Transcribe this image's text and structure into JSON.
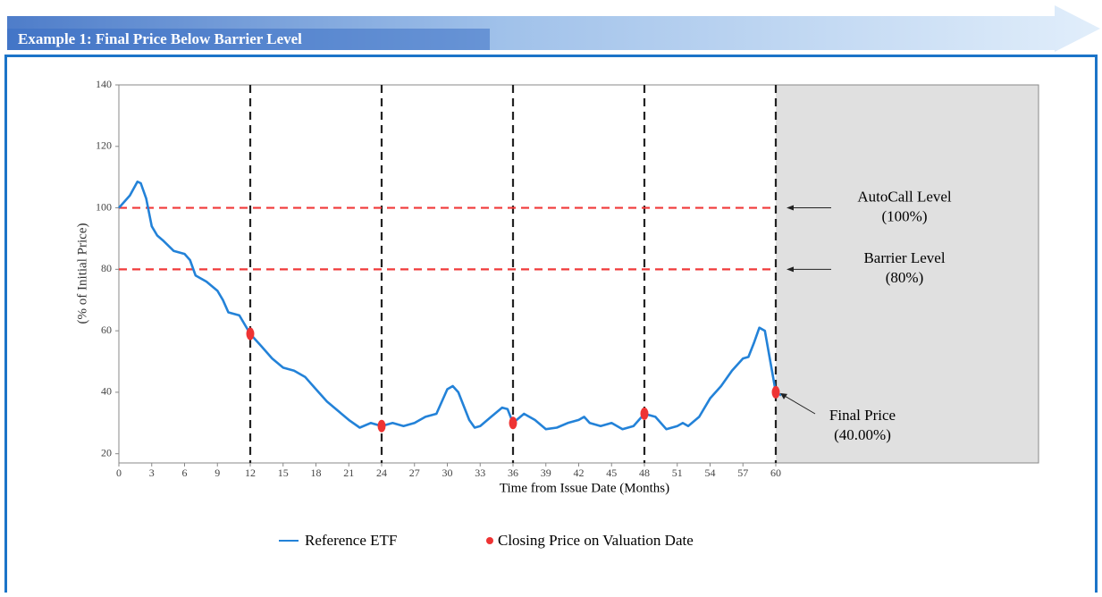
{
  "chart_data": {
    "type": "line",
    "title": "Example 1: Final Price Below Barrier Level",
    "xlabel": "Time from Issue Date (Months)",
    "ylabel": "(% of Initial Price)",
    "xlim": [
      0,
      84
    ],
    "ylim": [
      17,
      140
    ],
    "xticks": [
      0,
      3,
      6,
      9,
      12,
      15,
      18,
      21,
      24,
      27,
      30,
      33,
      36,
      39,
      42,
      45,
      48,
      51,
      54,
      57,
      60
    ],
    "yticks": [
      20,
      40,
      60,
      80,
      100,
      120,
      140
    ],
    "x": [
      0,
      1,
      1.7,
      2,
      2.5,
      3,
      3.5,
      4,
      5,
      6,
      6.5,
      7,
      8,
      9,
      9.5,
      10,
      11,
      12,
      13,
      14,
      15,
      16,
      17,
      18,
      19,
      20,
      21,
      22,
      23,
      24,
      25,
      26,
      27,
      28,
      29,
      30,
      30.5,
      31,
      32,
      32.5,
      33,
      34,
      35,
      35.5,
      36,
      37,
      38,
      39,
      40,
      41,
      42,
      42.5,
      43,
      44,
      45,
      46,
      47,
      48,
      49,
      50,
      51,
      51.5,
      52,
      53,
      54,
      55,
      56,
      57,
      57.5,
      58,
      58.5,
      59,
      59.5,
      60,
      60.5
    ],
    "series": [
      {
        "name": "Reference ETF",
        "color": "#2382d8",
        "values": [
          100,
          104,
          108.5,
          108,
          103,
          94,
          91,
          89.5,
          86,
          85,
          83,
          78,
          76,
          73,
          70,
          66,
          65,
          59,
          55,
          51,
          48,
          47,
          45,
          41,
          37,
          34,
          31,
          28.5,
          30,
          29,
          30,
          29,
          30,
          32,
          33,
          41,
          42,
          40,
          31,
          28.5,
          29,
          32,
          35,
          34.5,
          30,
          33,
          31,
          28,
          28.5,
          30,
          31,
          32,
          30,
          29,
          30,
          28,
          29,
          33,
          32,
          28,
          29,
          30,
          29,
          32,
          38,
          42,
          47,
          51,
          51.5,
          56,
          61,
          60,
          50,
          40,
          39
        ]
      }
    ],
    "points": {
      "name": "Closing Price on Valuation Date",
      "color": "#ee3333",
      "x": [
        12,
        24,
        36,
        48,
        60
      ],
      "values": [
        59,
        29,
        30,
        33,
        40
      ]
    },
    "valuation_dates": [
      12,
      24,
      36,
      48,
      60
    ],
    "shaded_from": 60,
    "levels": [
      {
        "value": 100,
        "lines": [
          "AutoCall Level",
          "(100%)"
        ]
      },
      {
        "value": 80,
        "lines": [
          "Barrier Level",
          "(80%)"
        ]
      }
    ],
    "final_price": {
      "x": 60,
      "value": 40,
      "lines": [
        "Final Price",
        "(40.00%)"
      ]
    }
  }
}
